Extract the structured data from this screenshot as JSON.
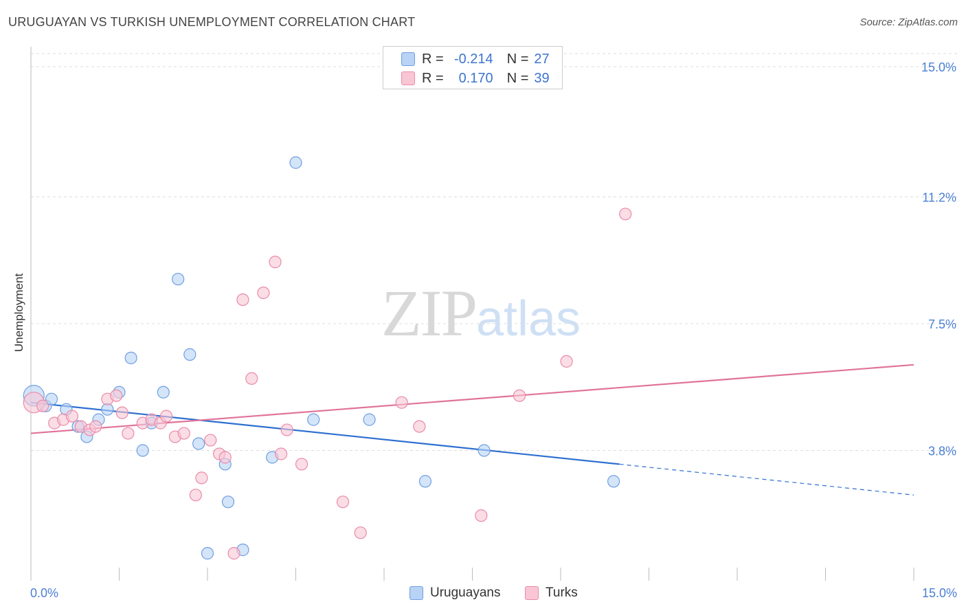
{
  "title": "URUGUAYAN VS TURKISH UNEMPLOYMENT CORRELATION CHART",
  "source": "Source: ZipAtlas.com",
  "watermark": {
    "zip": "ZIP",
    "atlas": "atlas"
  },
  "legend_top": {
    "rows": [
      {
        "r_label": "R =",
        "r_value": "-0.214",
        "n_label": "N =",
        "n_value": "27"
      },
      {
        "r_label": "R =",
        "r_value": "0.170",
        "n_label": "N =",
        "n_value": "39"
      }
    ]
  },
  "legend_bottom": [
    "Uruguayans",
    "Turks"
  ],
  "colors": {
    "uruguayans_fill": "#b8d3f5",
    "uruguayans_stroke": "#6f9ee0",
    "uruguayans_line": "#2d6fd0",
    "turks_fill": "#f9c6d6",
    "turks_stroke": "#e98aa8",
    "turks_line": "#e0739a",
    "grid": "#dcdcdc",
    "tick_text": "#4a7fd4"
  },
  "chart_data": {
    "type": "scatter",
    "title": "URUGUAYAN VS TURKISH UNEMPLOYMENT CORRELATION CHART",
    "xlabel": "",
    "ylabel": "Unemployment",
    "xlim": [
      0,
      15
    ],
    "ylim": [
      0,
      15.5
    ],
    "x_tick_labels": [
      "0.0%",
      "15.0%"
    ],
    "y_ticks": [
      3.8,
      7.5,
      11.2,
      15.0
    ],
    "y_tick_labels": [
      "3.8%",
      "7.5%",
      "11.2%",
      "15.0%"
    ],
    "grid": true,
    "legend_position": "top-center",
    "series": [
      {
        "name": "Uruguayans",
        "r": -0.214,
        "n": 27,
        "points": [
          [
            0.05,
            5.4,
            1.0
          ],
          [
            0.25,
            5.1,
            0.6
          ],
          [
            0.35,
            5.3,
            0.6
          ],
          [
            0.6,
            5.0,
            0.6
          ],
          [
            0.8,
            4.5,
            0.6
          ],
          [
            0.95,
            4.2,
            0.6
          ],
          [
            1.15,
            4.7,
            0.6
          ],
          [
            1.3,
            5.0,
            0.6
          ],
          [
            1.5,
            5.5,
            0.6
          ],
          [
            1.7,
            6.5,
            0.6
          ],
          [
            1.9,
            3.8,
            0.6
          ],
          [
            2.05,
            4.6,
            0.6
          ],
          [
            2.25,
            5.5,
            0.6
          ],
          [
            2.5,
            8.8,
            0.6
          ],
          [
            2.7,
            6.6,
            0.6
          ],
          [
            2.85,
            4.0,
            0.6
          ],
          [
            3.0,
            0.8,
            0.6
          ],
          [
            3.3,
            3.4,
            0.6
          ],
          [
            3.35,
            2.3,
            0.6
          ],
          [
            3.6,
            0.9,
            0.6
          ],
          [
            4.1,
            3.6,
            0.6
          ],
          [
            4.5,
            12.2,
            0.6
          ],
          [
            4.8,
            4.7,
            0.6
          ],
          [
            5.75,
            4.7,
            0.6
          ],
          [
            6.7,
            2.9,
            0.6
          ],
          [
            7.7,
            3.8,
            0.6
          ],
          [
            9.9,
            2.9,
            0.6
          ]
        ],
        "trend": {
          "x0": 0.0,
          "y0": 5.2,
          "x1": 10.0,
          "y1": 3.4,
          "x_dash_end": 15.0,
          "y_dash_end": 2.5
        }
      },
      {
        "name": "Turks",
        "r": 0.17,
        "n": 39,
        "points": [
          [
            0.05,
            5.2,
            1.0
          ],
          [
            0.2,
            5.1,
            0.6
          ],
          [
            0.4,
            4.6,
            0.6
          ],
          [
            0.55,
            4.7,
            0.6
          ],
          [
            0.7,
            4.8,
            0.6
          ],
          [
            0.85,
            4.5,
            0.6
          ],
          [
            1.0,
            4.4,
            0.6
          ],
          [
            1.1,
            4.5,
            0.6
          ],
          [
            1.3,
            5.3,
            0.6
          ],
          [
            1.45,
            5.4,
            0.6
          ],
          [
            1.55,
            4.9,
            0.6
          ],
          [
            1.65,
            4.3,
            0.6
          ],
          [
            1.9,
            4.6,
            0.6
          ],
          [
            2.05,
            4.7,
            0.6
          ],
          [
            2.2,
            4.6,
            0.6
          ],
          [
            2.3,
            4.8,
            0.6
          ],
          [
            2.45,
            4.2,
            0.6
          ],
          [
            2.6,
            4.3,
            0.6
          ],
          [
            2.8,
            2.5,
            0.6
          ],
          [
            2.9,
            3.0,
            0.6
          ],
          [
            3.05,
            4.1,
            0.6
          ],
          [
            3.2,
            3.7,
            0.6
          ],
          [
            3.3,
            3.6,
            0.6
          ],
          [
            3.45,
            0.8,
            0.6
          ],
          [
            3.6,
            8.2,
            0.6
          ],
          [
            3.75,
            5.9,
            0.6
          ],
          [
            3.95,
            8.4,
            0.6
          ],
          [
            4.15,
            9.3,
            0.6
          ],
          [
            4.25,
            3.7,
            0.6
          ],
          [
            4.35,
            4.4,
            0.6
          ],
          [
            4.6,
            3.4,
            0.6
          ],
          [
            5.3,
            2.3,
            0.6
          ],
          [
            5.6,
            1.4,
            0.6
          ],
          [
            6.3,
            5.2,
            0.6
          ],
          [
            6.6,
            4.5,
            0.6
          ],
          [
            7.65,
            1.9,
            0.6
          ],
          [
            8.3,
            5.4,
            0.6
          ],
          [
            9.1,
            6.4,
            0.6
          ],
          [
            10.1,
            10.7,
            0.6
          ]
        ],
        "trend": {
          "x0": 0.0,
          "y0": 4.3,
          "x1": 15.0,
          "y1": 6.3
        }
      }
    ]
  }
}
